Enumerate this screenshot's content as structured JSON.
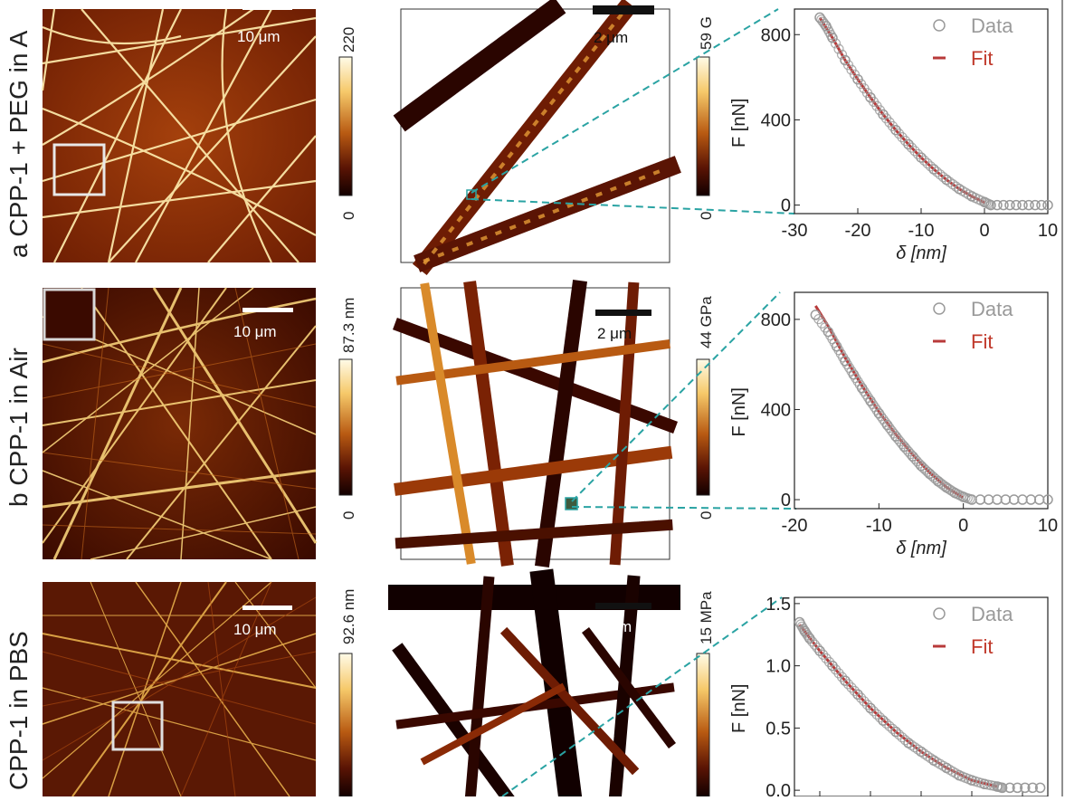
{
  "rows": [
    {
      "label": "a CPP-1 + PEG in A",
      "topo_scale": "10 μm",
      "topo_max": "220",
      "topo_min": "0",
      "mod_scale": "2 μm",
      "mod_max": "59 G",
      "mod_min": "0"
    },
    {
      "label": "b CPP-1 in Air",
      "topo_scale": "10 μm",
      "topo_max": "87.3 nm",
      "topo_min": "0",
      "mod_scale": "2 μm",
      "mod_max": "44 GPa",
      "mod_min": "0"
    },
    {
      "label": "CPP-1 in PBS",
      "topo_scale": "10 μm",
      "topo_max": "92.6 nm",
      "topo_min": "",
      "mod_scale": "2 μm",
      "mod_max": "15 MPa",
      "mod_min": ""
    }
  ],
  "chart_data": [
    {
      "type": "scatter",
      "xlabel": "δ [nm]",
      "ylabel": "F [nN]",
      "xlim": [
        -30,
        10
      ],
      "ylim": [
        -40,
        920
      ],
      "xticks": [
        -30,
        -20,
        -10,
        0,
        10
      ],
      "yticks": [
        0,
        400,
        800
      ],
      "legend": [
        "Data",
        "Fit"
      ],
      "legend_position": "top-right",
      "series": [
        {
          "name": "Data",
          "x": [
            -26,
            -25,
            -24,
            -22,
            -20,
            -18,
            -16,
            -14,
            -12,
            -10,
            -8,
            -6,
            -4,
            -2,
            0,
            1,
            2,
            3,
            4,
            5,
            6,
            7,
            8,
            9,
            10
          ],
          "y": [
            880,
            840,
            785,
            680,
            590,
            505,
            425,
            352,
            285,
            223,
            168,
            119,
            76,
            41,
            14,
            0,
            0,
            0,
            0,
            0,
            0,
            0,
            0,
            0,
            0
          ]
        },
        {
          "name": "Fit",
          "x": [
            -26,
            -24,
            -22,
            -20,
            -18,
            -16,
            -14,
            -12,
            -10,
            -8,
            -6,
            -4,
            -2,
            0
          ],
          "y": [
            880,
            785,
            680,
            590,
            505,
            425,
            352,
            285,
            223,
            168,
            119,
            76,
            41,
            12
          ]
        }
      ]
    },
    {
      "type": "scatter",
      "xlabel": "δ [nm]",
      "ylabel": "F [nN]",
      "xlim": [
        -20,
        10
      ],
      "ylim": [
        -40,
        920
      ],
      "xticks": [
        -20,
        -10,
        0,
        10
      ],
      "yticks": [
        0,
        400,
        800
      ],
      "legend": [
        "Data",
        "Fit"
      ],
      "legend_position": "top-right",
      "series": [
        {
          "name": "Data",
          "x": [
            -17.5,
            -16,
            -15,
            -14,
            -13,
            -12,
            -11,
            -10,
            -9,
            -8,
            -7,
            -6,
            -5,
            -4,
            -3,
            -2,
            -1,
            0,
            1,
            2,
            3,
            4,
            5,
            6,
            7,
            8,
            9,
            10
          ],
          "y": [
            820,
            745,
            680,
            615,
            555,
            495,
            438,
            383,
            331,
            281,
            235,
            192,
            150,
            115,
            82,
            54,
            30,
            12,
            0,
            0,
            0,
            0,
            0,
            0,
            0,
            0,
            0,
            0
          ]
        },
        {
          "name": "Fit",
          "x": [
            -17.5,
            -16,
            -14,
            -12,
            -10,
            -8,
            -6,
            -4,
            -2,
            0
          ],
          "y": [
            860,
            770,
            630,
            505,
            390,
            290,
            200,
            120,
            55,
            8
          ]
        }
      ]
    },
    {
      "type": "scatter",
      "xlabel": "",
      "ylabel": "F [nN]",
      "xlim": [
        0,
        1
      ],
      "ylim": [
        -0.05,
        1.55
      ],
      "yticks": [
        0.0,
        0.5,
        1.0,
        1.5
      ],
      "legend": [
        "Data",
        "Fit"
      ],
      "legend_position": "top-right",
      "series": [
        {
          "name": "Data",
          "x": [
            0.02,
            0.04,
            0.06,
            0.1,
            0.15,
            0.2,
            0.25,
            0.3,
            0.35,
            0.4,
            0.45,
            0.5,
            0.55,
            0.6,
            0.65,
            0.7,
            0.75,
            0.8,
            0.82,
            0.85,
            0.88,
            0.91,
            0.94,
            0.97
          ],
          "y": [
            1.35,
            1.28,
            1.22,
            1.12,
            1.0,
            0.88,
            0.77,
            0.66,
            0.56,
            0.47,
            0.38,
            0.31,
            0.24,
            0.18,
            0.12,
            0.08,
            0.05,
            0.03,
            0.02,
            0.02,
            0.02,
            0.02,
            0.02,
            0.02
          ]
        },
        {
          "name": "Fit",
          "x": [
            0.02,
            0.1,
            0.2,
            0.3,
            0.4,
            0.5,
            0.6,
            0.7,
            0.8
          ],
          "y": [
            1.33,
            1.12,
            0.88,
            0.66,
            0.47,
            0.31,
            0.18,
            0.08,
            0.03
          ]
        }
      ]
    }
  ],
  "colors": {
    "afm_dark": "#2a0500",
    "afm_mid": "#9b3a08",
    "afm_bright": "#ffe9a0",
    "guide": "#2aa3a3",
    "data_marker": "#9a9a9a",
    "fit_line": "#b83a3a",
    "fit_legend_text": "#c0392b"
  }
}
